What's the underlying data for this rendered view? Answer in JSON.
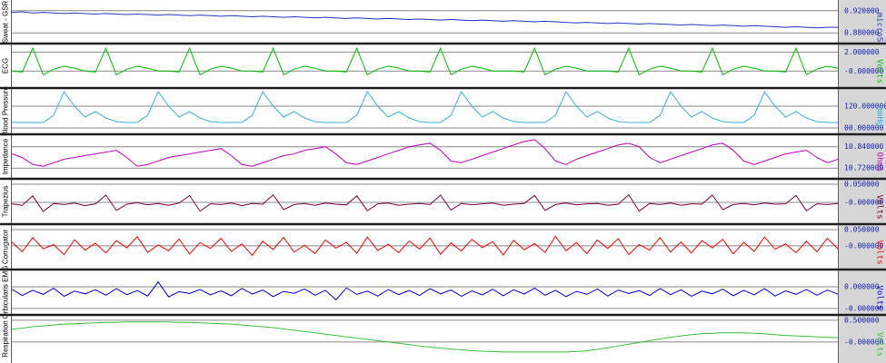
{
  "chart_data": [
    {
      "type": "line",
      "ylabel": "Sweat - GSR",
      "unit": "microS",
      "color": "#2038c8",
      "ylim": [
        0.864,
        0.936
      ],
      "yticks": [
        {
          "value": 0.92,
          "label": "0.920000"
        },
        {
          "value": 0.88,
          "label": "0.880000"
        }
      ],
      "values": [
        0.917,
        0.918,
        0.916,
        0.917,
        0.916,
        0.915,
        0.916,
        0.915,
        0.914,
        0.915,
        0.914,
        0.913,
        0.914,
        0.913,
        0.912,
        0.913,
        0.912,
        0.911,
        0.912,
        0.911,
        0.91,
        0.911,
        0.91,
        0.909,
        0.91,
        0.909,
        0.908,
        0.909,
        0.908,
        0.907,
        0.908,
        0.907,
        0.906,
        0.907,
        0.906,
        0.905,
        0.906,
        0.905,
        0.904,
        0.905,
        0.904,
        0.903,
        0.904,
        0.903,
        0.902,
        0.903,
        0.902,
        0.901,
        0.902,
        0.901,
        0.9,
        0.901,
        0.9,
        0.899,
        0.898,
        0.899,
        0.898,
        0.897,
        0.898,
        0.897,
        0.896,
        0.897,
        0.896,
        0.895,
        0.894,
        0.895,
        0.894,
        0.893,
        0.894,
        0.893,
        0.892,
        0.893,
        0.892,
        0.891,
        0.89,
        0.891,
        0.89,
        0.889,
        0.89,
        0.89
      ]
    },
    {
      "type": "line",
      "ylabel": "ECG",
      "unit": "Volts",
      "color": "#00c000",
      "ylim": [
        -1.6,
        2.7
      ],
      "yticks": [
        {
          "value": 2,
          "label": "2.000000"
        },
        {
          "value": 0,
          "label": "-0.000000"
        }
      ],
      "values": [
        0,
        -0.1,
        2.4,
        -0.4,
        0.2,
        0.5,
        0.3,
        0,
        -0.1,
        2.4,
        -0.4,
        0.2,
        0.5,
        0.3,
        0,
        0,
        -0.1,
        2.4,
        -0.4,
        0.2,
        0.5,
        0.3,
        0,
        0,
        -0.1,
        2.4,
        -0.4,
        0.2,
        0.5,
        0.3,
        0,
        0,
        -0.1,
        2.4,
        -0.4,
        0.2,
        0.5,
        0.3,
        0,
        0,
        -0.1,
        2.4,
        -0.4,
        0.2,
        0.5,
        0.3,
        0,
        0,
        0,
        -0.1,
        2.4,
        -0.4,
        0.2,
        0.5,
        0.3,
        0,
        0,
        0,
        -0.1,
        2.4,
        -0.4,
        0.2,
        0.5,
        0.3,
        0,
        0,
        -0.1,
        2.4,
        -0.4,
        0.2,
        0.5,
        0.3,
        0,
        0,
        -0.1,
        2.4,
        -0.4,
        0.2,
        0.5,
        0.3
      ]
    },
    {
      "type": "line",
      "ylabel": "Blood Pressure",
      "unit": "mmHg",
      "color": "#3aaee0",
      "ylim": [
        -25,
        210
      ],
      "yticks": [
        {
          "value": 120,
          "label": "120.000000"
        },
        {
          "value": 0,
          "label": "00.000000"
        }
      ],
      "values": [
        30,
        30,
        30,
        30,
        70,
        200,
        120,
        60,
        90,
        55,
        35,
        30,
        30,
        70,
        200,
        120,
        60,
        90,
        55,
        35,
        30,
        30,
        30,
        70,
        200,
        120,
        60,
        90,
        55,
        35,
        30,
        30,
        30,
        70,
        200,
        120,
        60,
        90,
        55,
        35,
        30,
        30,
        70,
        200,
        120,
        60,
        90,
        55,
        35,
        30,
        30,
        30,
        70,
        200,
        120,
        60,
        90,
        55,
        35,
        30,
        30,
        30,
        70,
        200,
        120,
        60,
        90,
        55,
        35,
        30,
        30,
        70,
        200,
        120,
        60,
        90,
        55,
        35,
        30,
        30
      ]
    },
    {
      "type": "line",
      "ylabel": "Impedance",
      "unit": "Ohms",
      "color": "#c000c0",
      "ylim": [
        10.67,
        10.9
      ],
      "yticks": [
        {
          "value": 10.84,
          "label": "10.840000"
        },
        {
          "value": 10.72,
          "label": "10.720000"
        }
      ],
      "values": [
        10.8,
        10.78,
        10.74,
        10.73,
        10.75,
        10.77,
        10.78,
        10.79,
        10.8,
        10.81,
        10.82,
        10.78,
        10.73,
        10.74,
        10.76,
        10.78,
        10.79,
        10.8,
        10.81,
        10.82,
        10.83,
        10.79,
        10.74,
        10.73,
        10.75,
        10.77,
        10.79,
        10.8,
        10.82,
        10.83,
        10.84,
        10.8,
        10.75,
        10.74,
        10.76,
        10.78,
        10.8,
        10.82,
        10.84,
        10.85,
        10.86,
        10.82,
        10.76,
        10.75,
        10.77,
        10.79,
        10.81,
        10.83,
        10.85,
        10.87,
        10.88,
        10.83,
        10.76,
        10.74,
        10.77,
        10.79,
        10.81,
        10.83,
        10.85,
        10.86,
        10.84,
        10.78,
        10.75,
        10.77,
        10.79,
        10.81,
        10.83,
        10.85,
        10.86,
        10.82,
        10.76,
        10.74,
        10.76,
        10.78,
        10.8,
        10.81,
        10.82,
        10.78,
        10.75,
        10.77
      ]
    },
    {
      "type": "line",
      "ylabel": "Trapezius",
      "unit": "Volts",
      "color": "#800040",
      "ylim": [
        -0.055,
        0.06
      ],
      "yticks": [
        {
          "value": 0.05,
          "label": "0.050000"
        },
        {
          "value": 0,
          "label": "-0.000000"
        }
      ],
      "values": [
        -0.004,
        -0.008,
        0.018,
        -0.025,
        -0.003,
        -0.006,
        -0.002,
        -0.009,
        -0.004,
        0.02,
        -0.022,
        -0.005,
        -0.001,
        -0.007,
        -0.003,
        -0.008,
        -0.002,
        0.019,
        -0.024,
        -0.004,
        -0.006,
        -0.002,
        -0.009,
        -0.003,
        -0.005,
        0.021,
        -0.02,
        -0.006,
        -0.003,
        -0.008,
        -0.002,
        -0.005,
        -0.007,
        0.018,
        -0.023,
        -0.004,
        -0.002,
        -0.008,
        -0.005,
        -0.003,
        -0.006,
        0.02,
        -0.021,
        -0.003,
        -0.007,
        -0.004,
        -0.002,
        -0.008,
        -0.005,
        -0.003,
        0.019,
        -0.022,
        -0.006,
        -0.002,
        -0.007,
        -0.004,
        -0.003,
        -0.008,
        -0.005,
        0.021,
        -0.024,
        -0.003,
        -0.006,
        -0.002,
        -0.008,
        -0.004,
        -0.005,
        0.02,
        -0.02,
        -0.006,
        -0.003,
        -0.007,
        -0.002,
        -0.005,
        -0.004,
        0.019,
        -0.023,
        -0.004,
        -0.006,
        -0.003
      ]
    },
    {
      "type": "line",
      "ylabel": "Corrugator",
      "unit": "Volts",
      "color": "#ff0000",
      "ylim": [
        -0.067,
        0.061
      ],
      "yticks": [
        {
          "value": 0.05,
          "label": "0.050000"
        },
        {
          "value": 0,
          "label": "-0.000000"
        }
      ],
      "values": [
        0.012,
        -0.018,
        0.025,
        -0.009,
        0.004,
        -0.027,
        0.019,
        -0.013,
        0.008,
        -0.022,
        0.016,
        -0.006,
        0.028,
        -0.02,
        0.003,
        -0.015,
        0.021,
        -0.025,
        0.01,
        -0.008,
        0.023,
        -0.017,
        0.006,
        -0.029,
        0.014,
        -0.011,
        0.026,
        -0.019,
        0.002,
        -0.024,
        0.018,
        -0.007,
        0.011,
        -0.023,
        0.027,
        -0.014,
        0.005,
        -0.021,
        0.015,
        -0.01,
        0.024,
        -0.026,
        0.009,
        -0.016,
        0.02,
        -0.005,
        0.013,
        -0.028,
        0.017,
        -0.012,
        0.007,
        -0.02,
        0.029,
        -0.015,
        0.01,
        -0.024,
        0.018,
        -0.008,
        0.022,
        -0.027,
        0.004,
        -0.013,
        0.025,
        -0.019,
        0.012,
        -0.022,
        0.016,
        -0.006,
        0.02,
        -0.025,
        0.011,
        -0.017,
        0.027,
        -0.01,
        0.006,
        -0.021,
        0.014,
        -0.018,
        0.023,
        -0.009
      ]
    },
    {
      "type": "line",
      "ylabel": "Orbicularis EMG",
      "unit": "Volts",
      "color": "#0000e0",
      "ylim": [
        -5.7e-07,
        9.7e-07
      ],
      "yticks": [
        {
          "value": 4e-07,
          "label": "0.000000"
        },
        {
          "value": -4e-07,
          "label": "-0.000000"
        }
      ],
      "values": [
        3.1e-07,
        8e-08,
        2.7e-07,
        1.2e-07,
        3.5e-07,
        5e-08,
        2.4e-07,
        1.4e-07,
        2.9e-07,
        9e-08,
        3.3e-07,
        1.1e-07,
        2.6e-07,
        6e-08,
        5.8e-07,
        3e-08,
        2.2e-07,
        1.5e-07,
        3e-07,
        1e-07,
        2.5e-07,
        7e-08,
        3.4e-07,
        1.3e-07,
        2.8e-07,
        4e-08,
        2.3e-07,
        1.6e-07,
        3.2e-07,
        9e-08,
        2.7e-07,
        -8e-08,
        3.6e-07,
        1.2e-07,
        2.4e-07,
        6e-08,
        3e-07,
        1.1e-07,
        2.6e-07,
        8e-08,
        3.3e-07,
        1.4e-07,
        2.8e-07,
        5e-08,
        2.5e-07,
        1e-07,
        3.1e-07,
        7e-08,
        2.9e-07,
        1.3e-07,
        3.5e-07,
        9e-08,
        2.7e-07,
        4e-08,
        2.3e-07,
        1.2e-07,
        3.2e-07,
        6e-08,
        2.8e-07,
        1.5e-07,
        2.6e-07,
        8e-08,
        3.4e-07,
        1.1e-07,
        2.9e-07,
        5e-08,
        2.4e-07,
        1.4e-07,
        3.1e-07,
        7e-08,
        2.7e-07,
        1e-07,
        3.3e-07,
        6e-08,
        2.5e-07,
        1.2e-07,
        3e-07,
        9e-08,
        2.8e-07,
        1.3e-07
      ]
    },
    {
      "type": "line",
      "ylabel": "Respiration",
      "unit": "Volts",
      "color": "#3cc03c",
      "ylim": [
        -0.44,
        0.58
      ],
      "yticks": [
        {
          "value": 0.5,
          "label": "0.500000"
        },
        {
          "value": 0,
          "label": "-0.000000"
        }
      ],
      "values": [
        0.29,
        0.32,
        0.35,
        0.37,
        0.39,
        0.41,
        0.42,
        0.43,
        0.44,
        0.45,
        0.45,
        0.46,
        0.46,
        0.46,
        0.46,
        0.46,
        0.45,
        0.45,
        0.44,
        0.43,
        0.42,
        0.41,
        0.39,
        0.37,
        0.35,
        0.33,
        0.3,
        0.27,
        0.24,
        0.21,
        0.18,
        0.15,
        0.12,
        0.09,
        0.06,
        0.03,
        0.0,
        -0.03,
        -0.06,
        -0.09,
        -0.12,
        -0.14,
        -0.16,
        -0.18,
        -0.2,
        -0.21,
        -0.22,
        -0.23,
        -0.23,
        -0.23,
        -0.23,
        -0.23,
        -0.23,
        -0.23,
        -0.22,
        -0.2,
        -0.17,
        -0.13,
        -0.09,
        -0.05,
        -0.01,
        0.03,
        0.07,
        0.11,
        0.14,
        0.17,
        0.19,
        0.2,
        0.21,
        0.21,
        0.21,
        0.2,
        0.19,
        0.17,
        0.15,
        0.14,
        0.13,
        0.12,
        0.11,
        0.1
      ]
    }
  ]
}
